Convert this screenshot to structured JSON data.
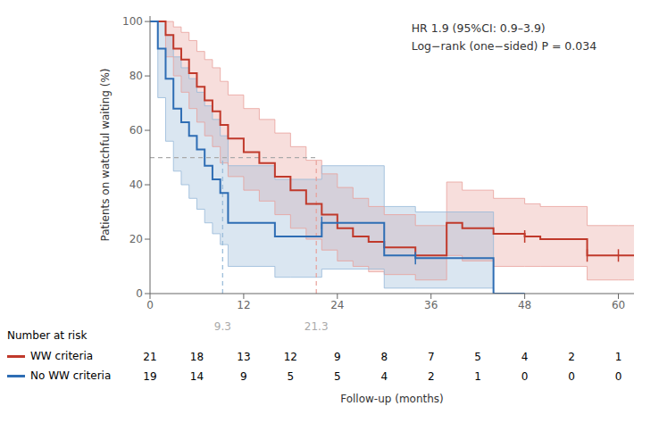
{
  "chart_data": {
    "type": "step",
    "annotations": [
      "HR 1.9 (95%CI: 0.9–3.9)",
      "Log−rank (one−sided) P = 0.034"
    ],
    "xlabel": "Follow-up (months)",
    "ylabel": "Patients on watchful waiting (%)",
    "xlim": [
      0,
      62
    ],
    "ylim": [
      0,
      102
    ],
    "xticks": [
      0,
      12,
      24,
      36,
      48,
      60
    ],
    "yticks": [
      0,
      20,
      40,
      60,
      80,
      100
    ],
    "grid": false,
    "median_color": "#aaaaaa",
    "risk_table": {
      "title": "Number at risk",
      "times": [
        0,
        6,
        12,
        18,
        24,
        30,
        36,
        42,
        48,
        54,
        60
      ]
    },
    "series": [
      {
        "name": "WW criteria",
        "color": "#c0392b",
        "band_color": "#e8a09a",
        "x": [
          0,
          2,
          3,
          4,
          5,
          6,
          7,
          8,
          9,
          10,
          12,
          14,
          16,
          18,
          20,
          22,
          24,
          26,
          28,
          30,
          34,
          38,
          40,
          44,
          48,
          50,
          56,
          60,
          62
        ],
        "values": [
          100,
          95,
          90,
          86,
          81,
          76,
          71,
          67,
          62,
          57,
          52,
          48,
          43,
          38,
          33,
          29,
          24,
          21,
          19,
          17,
          14,
          26,
          24,
          22,
          21,
          20,
          14,
          14,
          14
        ],
        "ci_x": [
          0,
          2,
          3,
          4,
          5,
          6,
          7,
          8,
          9,
          10,
          12,
          14,
          16,
          18,
          20,
          22,
          24,
          26,
          28,
          30,
          34,
          38,
          40,
          44,
          48,
          50,
          56,
          60,
          62
        ],
        "ci_upper": [
          100,
          100,
          98,
          96,
          93,
          89,
          86,
          83,
          78,
          73,
          68,
          64,
          59,
          54,
          49,
          44,
          39,
          35,
          32,
          29,
          25,
          41,
          38,
          35,
          33,
          32,
          25,
          25,
          25
        ],
        "ci_lower": [
          100,
          87,
          80,
          74,
          68,
          63,
          58,
          54,
          48,
          43,
          38,
          34,
          29,
          24,
          20,
          16,
          12,
          10,
          8,
          7,
          5,
          14,
          12,
          10,
          10,
          10,
          5,
          5,
          5
        ],
        "censor_x": [
          48,
          56,
          60
        ],
        "censor_y": [
          21,
          14,
          14
        ],
        "median": 21.3,
        "at_risk": [
          21,
          18,
          13,
          12,
          9,
          8,
          7,
          5,
          4,
          2,
          1
        ]
      },
      {
        "name": "No WW criteria",
        "color": "#2e6db4",
        "band_color": "#95b8d8",
        "x": [
          0,
          1,
          2,
          3,
          4,
          5,
          6,
          7,
          8,
          9,
          10,
          16,
          18,
          22,
          28,
          30,
          34,
          44,
          48
        ],
        "values": [
          100,
          90,
          79,
          68,
          63,
          58,
          53,
          47,
          42,
          37,
          26,
          21,
          21,
          26,
          26,
          14,
          13,
          0,
          0
        ],
        "ci_x": [
          0,
          1,
          2,
          3,
          4,
          5,
          6,
          7,
          8,
          9,
          10,
          16,
          18,
          22,
          28,
          30,
          34,
          44
        ],
        "ci_upper": [
          100,
          100,
          95,
          87,
          83,
          79,
          74,
          69,
          64,
          58,
          47,
          42,
          42,
          47,
          47,
          32,
          30,
          13
        ],
        "ci_lower": [
          100,
          72,
          56,
          45,
          40,
          35,
          31,
          26,
          22,
          18,
          10,
          6,
          6,
          9,
          9,
          2,
          2,
          0
        ],
        "censor_x": [
          22,
          34
        ],
        "censor_y": [
          26,
          13
        ],
        "median": 9.3,
        "at_risk": [
          19,
          14,
          9,
          5,
          5,
          4,
          2,
          1,
          0,
          0,
          0
        ]
      }
    ]
  }
}
